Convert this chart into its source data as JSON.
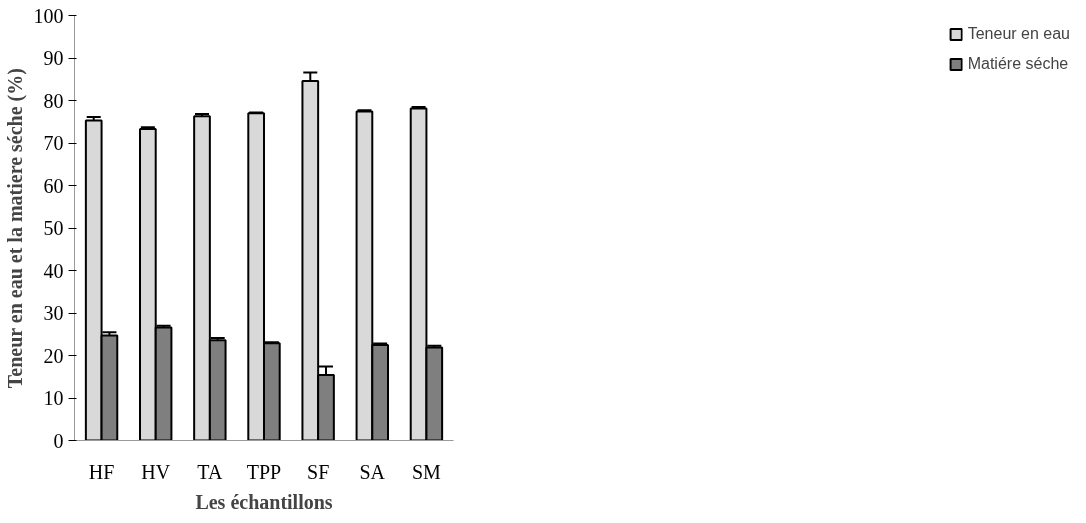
{
  "chart_data": {
    "type": "bar",
    "xlabel": "Les échantillons",
    "ylabel": "Teneur en eau et la matiere séche (%)",
    "categories": [
      "HF",
      "HV",
      "TA",
      "TPP",
      "SF",
      "SA",
      "SM"
    ],
    "series": [
      {
        "name": "Teneur en eau",
        "color": "#d9d9d9",
        "values": [
          75.3,
          73.3,
          76.3,
          77.0,
          84.6,
          77.4,
          78.1
        ],
        "errors": [
          0.8,
          0.4,
          0.5,
          0.2,
          2.0,
          0.3,
          0.4
        ]
      },
      {
        "name": "Matiére séche",
        "color": "#7f7f7f",
        "values": [
          24.7,
          26.6,
          23.6,
          22.9,
          15.4,
          22.5,
          21.9
        ],
        "errors": [
          0.8,
          0.4,
          0.5,
          0.2,
          2.0,
          0.3,
          0.4
        ]
      }
    ],
    "ylim": [
      0,
      100
    ],
    "yticks": [
      0,
      10,
      20,
      30,
      40,
      50,
      60,
      70,
      80,
      90,
      100
    ],
    "grid": false,
    "legend": "right"
  }
}
